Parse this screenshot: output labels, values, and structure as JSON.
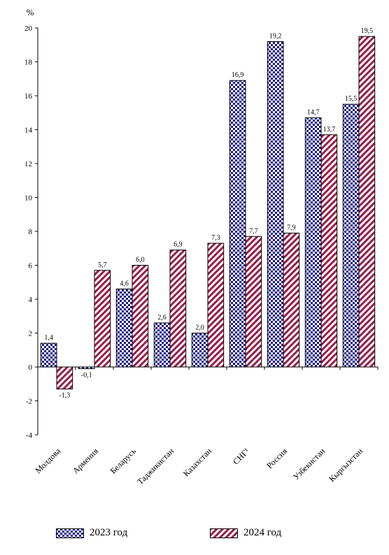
{
  "chart_data": {
    "type": "bar",
    "unit_label": "%",
    "categories": [
      "Молдова",
      "Армения",
      "Беларусь",
      "Таджикистан",
      "Казахстан",
      "СНГ¹",
      "Россия",
      "Узбекистан",
      "Кыргызстан"
    ],
    "series": [
      {
        "name": "2023 год",
        "values": [
          1.4,
          -0.1,
          4.6,
          2.6,
          2.0,
          16.9,
          19.2,
          14.7,
          15.5
        ],
        "labels": [
          "1,4",
          "-0,1",
          "4,6",
          "2,6",
          "2,0",
          "16,9",
          "19,2",
          "14,7",
          "15,5"
        ],
        "color": "#1a1a8c",
        "pattern": "checkerboard"
      },
      {
        "name": "2024 год",
        "values": [
          -1.3,
          5.7,
          6.0,
          6.9,
          7.3,
          7.7,
          7.9,
          13.7,
          19.5
        ],
        "labels": [
          "-1,3",
          "5,7",
          "6,0",
          "6,9",
          "7,3",
          "7,7",
          "7,9",
          "13,7",
          "19,5"
        ],
        "color": "#9c1a45",
        "pattern": "diagonal-stripes"
      }
    ],
    "yticks": [
      -4,
      -2,
      0,
      2,
      4,
      6,
      8,
      10,
      12,
      14,
      16,
      18,
      20
    ],
    "ylim": [
      -4,
      20
    ],
    "grid": false,
    "legend_position": "bottom"
  }
}
